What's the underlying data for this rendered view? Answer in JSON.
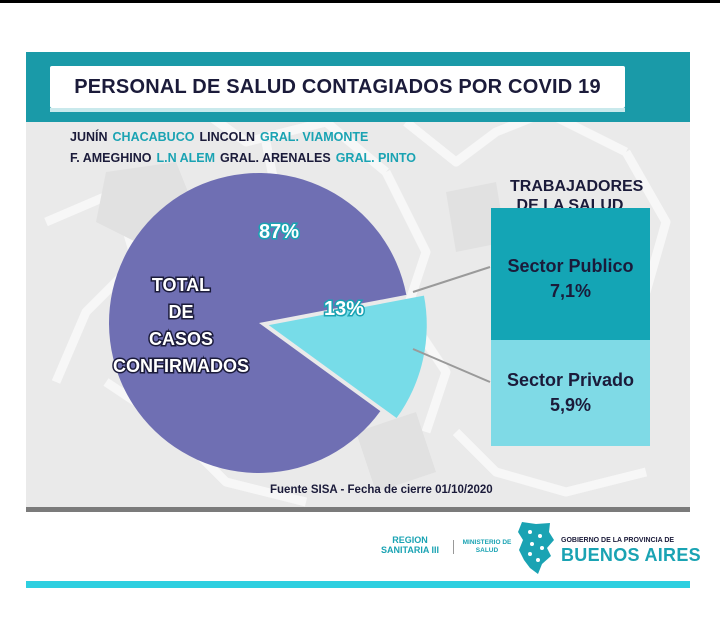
{
  "title": "PERSONAL DE SALUD CONTAGIADOS POR  COVID 19",
  "departments": [
    [
      {
        "name": "JUNÍN",
        "highlight": false
      },
      {
        "name": "CHACABUCO",
        "highlight": true
      },
      {
        "name": "LINCOLN",
        "highlight": false
      },
      {
        "name": "GRAL. VIAMONTE",
        "highlight": true
      }
    ],
    [
      {
        "name": "F. AMEGHINO",
        "highlight": false
      },
      {
        "name": "L.N ALEM",
        "highlight": true
      },
      {
        "name": "GRAL. ARENALES",
        "highlight": false
      },
      {
        "name": "GRAL. PINTO",
        "highlight": true
      }
    ]
  ],
  "chart_data": {
    "type": "pie",
    "slices": [
      {
        "label": "TOTAL DE CASOS CONFIRMADOS",
        "value": 87,
        "display": "87%",
        "color": "#6f6fb3"
      },
      {
        "label": "TRABAJADORES DE LA SALUD",
        "value": 13,
        "display": "13%",
        "color": "#77dce8"
      }
    ],
    "breakdown": {
      "title": "TRABAJADORES DE LA SALUD",
      "items": [
        {
          "label": "Sector Publico",
          "display": "7,1%",
          "value": 7.1,
          "color": "#14a5b5"
        },
        {
          "label": "Sector Privado",
          "display": "5,9%",
          "value": 5.9,
          "color": "#7fdae6"
        }
      ]
    }
  },
  "labels": {
    "total_lines": [
      "TOTAL",
      "DE",
      "CASOS",
      "CONFIRMADOS"
    ]
  },
  "source": "Fuente SISA - Fecha de cierre  01/10/2020",
  "footer": {
    "region": "REGION\nSANITARIA III",
    "ministerio": "MINISTERIO DE\nSALUD",
    "gobierno": "GOBIERNO DE LA PROVINCIA DE",
    "provincia": "BUENOS AIRES"
  },
  "colors": {
    "accent": "#1a9aa8",
    "highlight_text": "#1aa3b3",
    "dark_text": "#1b1b3a"
  }
}
